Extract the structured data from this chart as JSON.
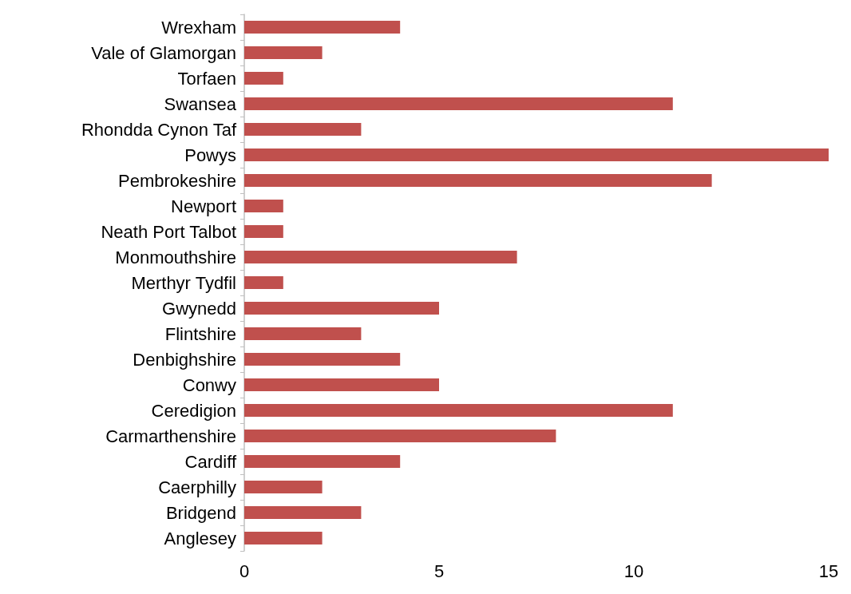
{
  "chart_data": {
    "type": "bar",
    "orientation": "horizontal",
    "categories": [
      "Wrexham",
      "Vale of Glamorgan",
      "Torfaen",
      "Swansea",
      "Rhondda Cynon Taf",
      "Powys",
      "Pembrokeshire",
      "Newport",
      "Neath Port Talbot",
      "Monmouthshire",
      "Merthyr Tydfil",
      "Gwynedd",
      "Flintshire",
      "Denbighshire",
      "Conwy",
      "Ceredigion",
      "Carmarthenshire",
      "Cardiff",
      "Caerphilly",
      "Bridgend",
      "Anglesey"
    ],
    "values": [
      4,
      2,
      1,
      11,
      3,
      15,
      12,
      1,
      1,
      7,
      1,
      5,
      3,
      4,
      5,
      11,
      8,
      4,
      2,
      3,
      2
    ],
    "color": "#c0504d",
    "xlim": [
      0,
      15
    ],
    "xticks": [
      0,
      5,
      10,
      15
    ],
    "grid": false
  }
}
